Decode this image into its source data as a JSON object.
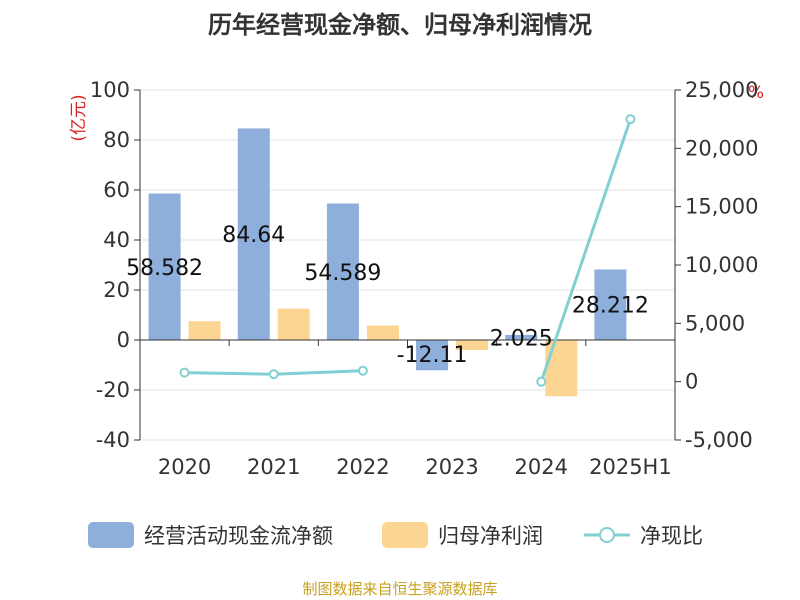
{
  "chart_data": {
    "type": "bar",
    "title": "历年经营现金净额、归母净利润情况",
    "categories": [
      "2020",
      "2021",
      "2022",
      "2023",
      "2024",
      "2025H1"
    ],
    "series": [
      {
        "name": "经营活动现金流净额",
        "kind": "bar",
        "axis": "left",
        "color": "#8eaedb",
        "values": [
          58.582,
          84.64,
          54.589,
          -12.11,
          2.025,
          28.212
        ]
      },
      {
        "name": "归母净利润",
        "kind": "bar",
        "axis": "left",
        "color": "#fdd592",
        "values": [
          7.5,
          12.5,
          5.8,
          -4.0,
          -22.5,
          null
        ]
      },
      {
        "name": "净现比",
        "kind": "line",
        "axis": "right",
        "color": "#82d0d4",
        "values": [
          780,
          640,
          940,
          null,
          0,
          22500
        ]
      }
    ],
    "data_labels": [
      "58.582",
      "84.64",
      "54.589",
      "-12.11",
      "2.025",
      "28.212"
    ],
    "left_axis": {
      "unit": "(亿元)",
      "min": -40,
      "max": 100,
      "step": 20,
      "ticks": [
        "100",
        "80",
        "60",
        "40",
        "20",
        "0",
        "-20",
        "-40"
      ]
    },
    "right_axis": {
      "unit": "%",
      "min": -5000,
      "max": 25000,
      "step": 5000,
      "ticks": [
        "25,000",
        "20,000",
        "15,000",
        "10,000",
        "5,000",
        "0",
        "-5,000"
      ]
    },
    "legend_position": "bottom",
    "source": "制图数据来自恒生聚源数据库"
  }
}
